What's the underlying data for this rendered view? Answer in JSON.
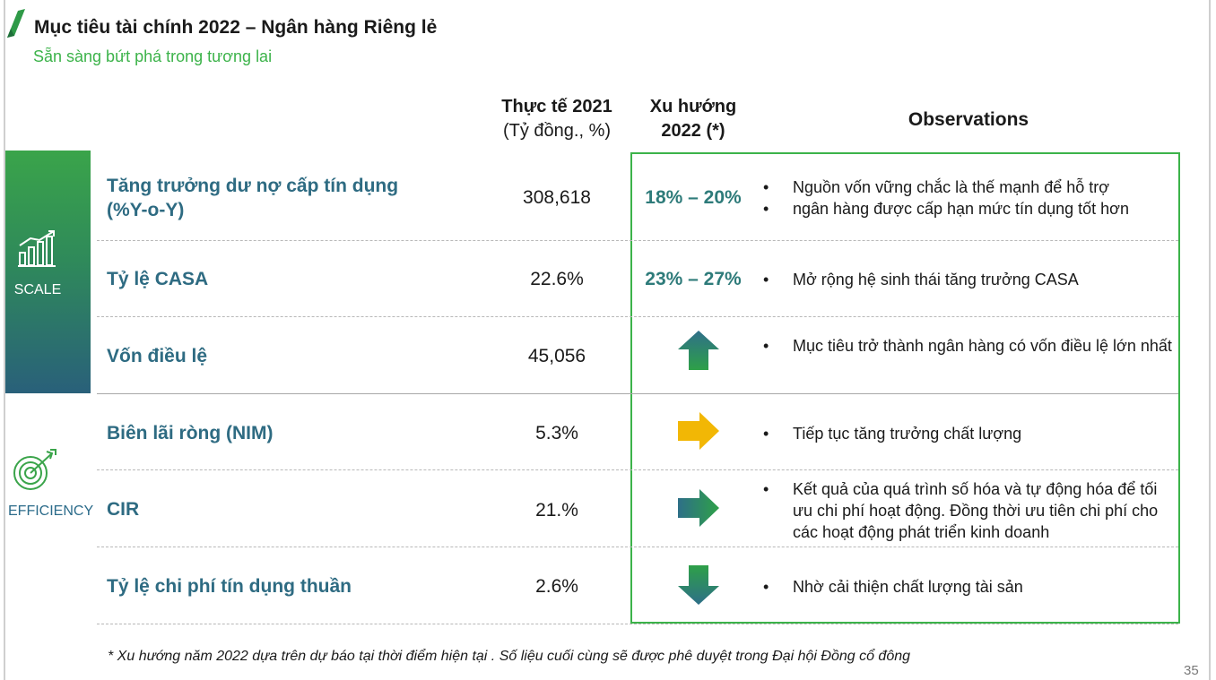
{
  "header": {
    "title": "Mục tiêu tài chính 2022 – Ngân hàng Riêng lẻ",
    "subtitle": "Sẵn sàng bứt phá trong tương lai"
  },
  "columns": {
    "actual_line1": "Thực tế 2021",
    "actual_line2": "(Tỷ đồng., %)",
    "trend_line1": "Xu hướng",
    "trend_line2": "2022 (*)",
    "observations": "Observations"
  },
  "categories": {
    "scale": {
      "label": "SCALE",
      "icon": "bar-chart-growth-icon"
    },
    "efficiency": {
      "label": "EFFICIENCY",
      "icon": "target-arrow-icon"
    }
  },
  "rows": [
    {
      "label_line1": "Tăng trưởng dư nợ cấp tín dụng",
      "label_line2": "(%Y-o-Y)",
      "actual": "308,618",
      "trend": "18% – 20%",
      "observations": [
        "Nguồn vốn vững chắc là thế mạnh để hỗ trợ",
        "ngân hàng được cấp hạn mức tín dụng tốt hơn"
      ]
    },
    {
      "label_line1": "Tỷ lệ CASA",
      "actual": "22.6%",
      "trend": "23% – 27%",
      "observations": [
        "Mở rộng hệ sinh thái tăng trưởng CASA"
      ]
    },
    {
      "label_line1": "Vốn điều lệ",
      "actual": "45,056",
      "trend_icon": "arrow-up-icon",
      "trend_color": "#2e9b4a",
      "observations": [
        "Mục tiêu trở thành ngân hàng có vốn điều lệ lớn nhất"
      ]
    },
    {
      "label_line1": "Biên lãi ròng (NIM)",
      "actual": "5.3%",
      "trend_icon": "arrow-right-icon",
      "trend_color": "#f2b705",
      "observations": [
        "Tiếp tục tăng trưởng chất lượng"
      ]
    },
    {
      "label_line1": "CIR",
      "actual": "21.%",
      "trend_icon": "arrow-right-icon",
      "trend_color": "#2a8a6a",
      "observations": [
        "Kết quả của quá trình số hóa và tự động hóa để tối ưu chi phí hoạt động. Đồng thời ưu tiên chi phí cho các hoạt động phát triển kinh doanh"
      ]
    },
    {
      "label_line1": "Tỷ lệ chi phí tín dụng thuần",
      "actual": "2.6%",
      "trend_icon": "arrow-down-icon",
      "trend_color": "#2a7a8a",
      "observations": [
        "Nhờ cải thiện chất lượng tài sản"
      ]
    }
  ],
  "footnote": "* Xu hướng năm 2022 dựa trên dự báo tại thời điểm hiện tại . Số liệu cuối cùng sẽ được phê duyệt trong Đại hội Đồng cổ đông",
  "page_number": "35",
  "colors": {
    "accent_green": "#3cb34a",
    "label_teal": "#2e6b82",
    "arrow_yellow": "#f2b705"
  }
}
